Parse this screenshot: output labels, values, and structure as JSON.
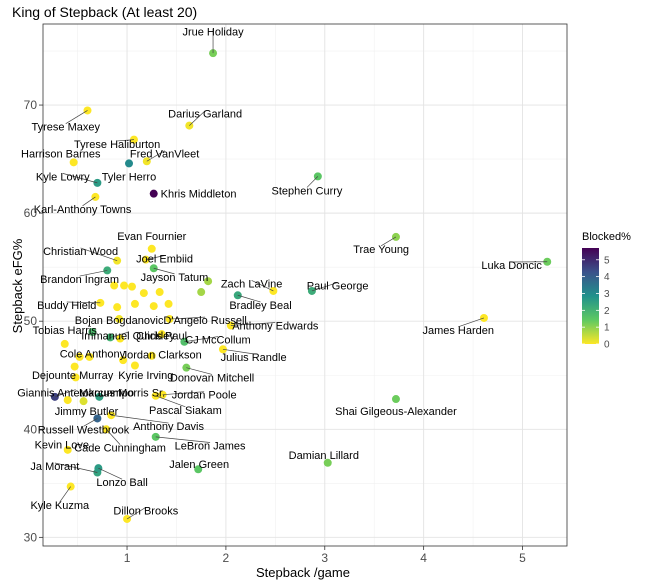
{
  "chart_data": {
    "type": "scatter",
    "title": "King of Stepback (At least 20)",
    "xlabel": "Stepback /game",
    "ylabel": "Stepback eFG%",
    "xlim": [
      0.15,
      5.45
    ],
    "ylim": [
      29.2,
      77.5
    ],
    "x_ticks": [
      1,
      2,
      3,
      4,
      5
    ],
    "y_ticks": [
      30,
      40,
      50,
      60,
      70
    ],
    "grid": true,
    "legend": {
      "title": "Blocked%",
      "position": "right",
      "ticks": [
        0,
        1,
        2,
        3,
        4,
        5
      ],
      "range": [
        0,
        5.7
      ],
      "colormap": "viridis"
    },
    "points": [
      {
        "name": "Jrue Holiday",
        "x": 1.87,
        "y": 74.8,
        "blocked": 1.2,
        "lx": 1.87,
        "ly": 76.8,
        "anchor": "middle"
      },
      {
        "name": "Tyrese Maxey",
        "x": 0.6,
        "y": 69.5,
        "blocked": 0.0,
        "lx": 0.38,
        "ly": 68.0,
        "anchor": "middle"
      },
      {
        "name": "Darius Garland",
        "x": 1.63,
        "y": 68.1,
        "blocked": 0.1,
        "lx": 1.79,
        "ly": 69.2,
        "anchor": "middle"
      },
      {
        "name": "Tyrese Haliburton",
        "x": 1.07,
        "y": 66.8,
        "blocked": 0.0,
        "lx": 0.9,
        "ly": 66.4,
        "anchor": "middle"
      },
      {
        "name": "Harrison Barnes",
        "x": 0.46,
        "y": 64.7,
        "blocked": 0.0,
        "lx": 0.33,
        "ly": 65.5,
        "anchor": "middle"
      },
      {
        "name": "Fred VanVleet",
        "x": 1.2,
        "y": 64.8,
        "blocked": 0.1,
        "lx": 1.38,
        "ly": 65.5,
        "anchor": "middle"
      },
      {
        "name": "Tyler Herro",
        "x": 1.02,
        "y": 64.6,
        "blocked": 3.0,
        "lx": 1.02,
        "ly": 63.4,
        "anchor": "middle"
      },
      {
        "name": "Kyle Lowry",
        "x": 0.7,
        "y": 62.8,
        "blocked": 2.6,
        "lx": 0.35,
        "ly": 63.4,
        "anchor": "middle"
      },
      {
        "name": "Stephen Curry",
        "x": 2.93,
        "y": 63.4,
        "blocked": 1.5,
        "lx": 2.82,
        "ly": 62.1,
        "anchor": "middle"
      },
      {
        "name": "Khris Middleton",
        "x": 1.27,
        "y": 61.8,
        "blocked": 5.7,
        "lx": 1.34,
        "ly": 61.8,
        "anchor": "start"
      },
      {
        "name": "Karl-Anthony Towns",
        "x": 0.68,
        "y": 61.5,
        "blocked": 0.0,
        "lx": 0.55,
        "ly": 60.4,
        "anchor": "middle"
      },
      {
        "name": "Trae Young",
        "x": 3.72,
        "y": 57.8,
        "blocked": 1.0,
        "lx": 3.57,
        "ly": 56.7,
        "anchor": "middle"
      },
      {
        "name": "Evan Fournier",
        "x": 1.25,
        "y": 56.7,
        "blocked": 0.0,
        "lx": 1.25,
        "ly": 57.9,
        "anchor": "middle"
      },
      {
        "name": "Joel Embiid",
        "x": 1.19,
        "y": 55.7,
        "blocked": 0.0,
        "lx": 1.38,
        "ly": 55.8,
        "anchor": "middle"
      },
      {
        "name": "Christian Wood",
        "x": 0.9,
        "y": 55.6,
        "blocked": 0.1,
        "lx": 0.53,
        "ly": 56.5,
        "anchor": "middle"
      },
      {
        "name": "Luka Doncic",
        "x": 5.25,
        "y": 55.5,
        "blocked": 1.3,
        "lx": 4.89,
        "ly": 55.2,
        "anchor": "middle"
      },
      {
        "name": "Jayson Tatum",
        "x": 1.27,
        "y": 54.9,
        "blocked": 1.5,
        "lx": 1.48,
        "ly": 54.1,
        "anchor": "middle"
      },
      {
        "name": "Brandon Ingram",
        "x": 0.8,
        "y": 54.7,
        "blocked": 2.2,
        "lx": 0.52,
        "ly": 53.9,
        "anchor": "middle"
      },
      {
        "name": "Zach LaVine",
        "x": 2.48,
        "y": 52.8,
        "blocked": 0.0,
        "lx": 2.26,
        "ly": 53.5,
        "anchor": "middle"
      },
      {
        "name": "Paul George",
        "x": 2.87,
        "y": 52.8,
        "blocked": 2.2,
        "lx": 3.13,
        "ly": 53.3,
        "anchor": "middle"
      },
      {
        "name": "Bradley Beal",
        "x": 2.12,
        "y": 52.4,
        "blocked": 2.3,
        "lx": 2.35,
        "ly": 51.5,
        "anchor": "middle"
      },
      {
        "name": "Buddy Hield",
        "x": 0.73,
        "y": 51.7,
        "blocked": 0.0,
        "lx": 0.39,
        "ly": 51.5,
        "anchor": "middle"
      },
      {
        "name": "James Harden",
        "x": 4.61,
        "y": 50.3,
        "blocked": 0.0,
        "lx": 4.35,
        "ly": 49.2,
        "anchor": "middle"
      },
      {
        "name": "Bojan Bogdanovic",
        "x": 0.92,
        "y": 50.2,
        "blocked": 0.1,
        "lx": 0.92,
        "ly": 50.1,
        "anchor": "middle"
      },
      {
        "name": "D'Angelo Russell",
        "x": 1.43,
        "y": 50.2,
        "blocked": 0.0,
        "lx": 1.79,
        "ly": 50.1,
        "anchor": "middle"
      },
      {
        "name": "Anthony Edwards",
        "x": 2.05,
        "y": 49.6,
        "blocked": 0.0,
        "lx": 2.5,
        "ly": 49.6,
        "anchor": "middle"
      },
      {
        "name": "Tobias Harris",
        "x": 0.37,
        "y": 47.9,
        "blocked": 0.0,
        "lx": 0.37,
        "ly": 49.2,
        "anchor": "middle"
      },
      {
        "name": "Immanuel Quickley",
        "x": 0.83,
        "y": 48.5,
        "blocked": 2.0,
        "lx": 1.01,
        "ly": 48.7,
        "anchor": "middle"
      },
      {
        "name": "Chris Paul",
        "x": 1.35,
        "y": 48.8,
        "blocked": 0.0,
        "lx": 1.35,
        "ly": 48.7,
        "anchor": "middle"
      },
      {
        "name": "CJ McCollum",
        "x": 1.58,
        "y": 48.1,
        "blocked": 1.7,
        "lx": 1.92,
        "ly": 48.3,
        "anchor": "middle"
      },
      {
        "name": "Cole Anthony",
        "x": 0.52,
        "y": 46.7,
        "blocked": 0.0,
        "lx": 0.65,
        "ly": 47.0,
        "anchor": "middle"
      },
      {
        "name": "Jordan Clarkson",
        "x": 1.25,
        "y": 46.8,
        "blocked": 0.0,
        "lx": 1.35,
        "ly": 46.9,
        "anchor": "middle"
      },
      {
        "name": "Julius Randle",
        "x": 1.97,
        "y": 47.4,
        "blocked": 0.0,
        "lx": 2.28,
        "ly": 46.7,
        "anchor": "middle"
      },
      {
        "name": "Dejounte Murray",
        "x": 0.47,
        "y": 45.8,
        "blocked": 0.0,
        "lx": 0.45,
        "ly": 45.0,
        "anchor": "middle"
      },
      {
        "name": "Kyrie Irving",
        "x": 1.08,
        "y": 45.9,
        "blocked": 0.0,
        "lx": 1.19,
        "ly": 45.0,
        "anchor": "middle"
      },
      {
        "name": "Donovan Mitchell",
        "x": 1.6,
        "y": 45.7,
        "blocked": 1.2,
        "lx": 1.86,
        "ly": 44.8,
        "anchor": "middle"
      },
      {
        "name": "Giannis Antetokounmpo",
        "x": 0.27,
        "y": 43.0,
        "blocked": 4.6,
        "lx": 0.48,
        "ly": 43.4,
        "anchor": "middle"
      },
      {
        "name": "Marcus Morris Sr.",
        "x": 0.72,
        "y": 43.0,
        "blocked": 2.5,
        "lx": 0.95,
        "ly": 43.4,
        "anchor": "middle"
      },
      {
        "name": "Jordan Poole",
        "x": 1.36,
        "y": 43.2,
        "blocked": 0.0,
        "lx": 1.78,
        "ly": 43.2,
        "anchor": "middle"
      },
      {
        "name": "Shai Gilgeous-Alexander",
        "x": 3.72,
        "y": 42.8,
        "blocked": 1.3,
        "lx": 3.72,
        "ly": 41.7,
        "anchor": "middle"
      },
      {
        "name": "Jimmy Butler",
        "x": 0.56,
        "y": 42.6,
        "blocked": 0.3,
        "lx": 0.59,
        "ly": 41.7,
        "anchor": "middle"
      },
      {
        "name": "Pascal Siakam",
        "x": 1.29,
        "y": 43.1,
        "blocked": 0.0,
        "lx": 1.59,
        "ly": 41.8,
        "anchor": "middle"
      },
      {
        "name": "Anthony Davis",
        "x": 0.84,
        "y": 41.3,
        "blocked": 0.0,
        "lx": 1.42,
        "ly": 40.3,
        "anchor": "middle"
      },
      {
        "name": "Russell Westbrook",
        "x": 0.7,
        "y": 41.0,
        "blocked": 3.9,
        "lx": 0.56,
        "ly": 40.0,
        "anchor": "middle"
      },
      {
        "name": "Cade Cunningham",
        "x": 0.79,
        "y": 40.0,
        "blocked": 0.0,
        "lx": 0.93,
        "ly": 38.3,
        "anchor": "middle"
      },
      {
        "name": "LeBron James",
        "x": 1.29,
        "y": 39.3,
        "blocked": 1.5,
        "lx": 1.84,
        "ly": 38.5,
        "anchor": "middle"
      },
      {
        "name": "Kevin Love",
        "x": 0.4,
        "y": 38.1,
        "blocked": 0.0,
        "lx": 0.34,
        "ly": 38.6,
        "anchor": "middle"
      },
      {
        "name": "Damian Lillard",
        "x": 3.03,
        "y": 36.9,
        "blocked": 1.2,
        "lx": 2.99,
        "ly": 37.6,
        "anchor": "middle"
      },
      {
        "name": "Jalen Green",
        "x": 1.72,
        "y": 36.3,
        "blocked": 1.5,
        "lx": 1.73,
        "ly": 36.8,
        "anchor": "middle"
      },
      {
        "name": "Ja Morant",
        "x": 0.7,
        "y": 36.0,
        "blocked": 2.4,
        "lx": 0.27,
        "ly": 36.6,
        "anchor": "middle"
      },
      {
        "name": "Lonzo Ball",
        "x": 0.71,
        "y": 36.4,
        "blocked": 2.6,
        "lx": 0.95,
        "ly": 35.1,
        "anchor": "middle"
      },
      {
        "name": "Kyle Kuzma",
        "x": 0.43,
        "y": 34.7,
        "blocked": 0.0,
        "lx": 0.32,
        "ly": 33.0,
        "anchor": "middle"
      },
      {
        "name": "Dillon Brooks",
        "x": 1.0,
        "y": 31.7,
        "blocked": 0.0,
        "lx": 1.19,
        "ly": 32.5,
        "anchor": "middle"
      }
    ],
    "extra_points": [
      {
        "x": 0.87,
        "y": 53.3,
        "blocked": 0.0
      },
      {
        "x": 0.97,
        "y": 53.3,
        "blocked": 0.0
      },
      {
        "x": 1.05,
        "y": 53.2,
        "blocked": 0.0
      },
      {
        "x": 1.17,
        "y": 52.6,
        "blocked": 0.0
      },
      {
        "x": 1.33,
        "y": 52.7,
        "blocked": 0.0
      },
      {
        "x": 1.42,
        "y": 51.6,
        "blocked": 0.0
      },
      {
        "x": 1.27,
        "y": 51.4,
        "blocked": 0.0
      },
      {
        "x": 0.9,
        "y": 51.3,
        "blocked": 0.0
      },
      {
        "x": 1.08,
        "y": 51.6,
        "blocked": 0.0
      },
      {
        "x": 1.75,
        "y": 52.7,
        "blocked": 0.8
      },
      {
        "x": 1.82,
        "y": 53.7,
        "blocked": 0.8
      },
      {
        "x": 0.65,
        "y": 49.0,
        "blocked": 1.8
      },
      {
        "x": 0.93,
        "y": 48.4,
        "blocked": 0.0
      },
      {
        "x": 0.96,
        "y": 46.4,
        "blocked": 0.0
      },
      {
        "x": 0.62,
        "y": 46.7,
        "blocked": 0.0
      },
      {
        "x": 0.48,
        "y": 44.8,
        "blocked": 0.0
      },
      {
        "x": 0.4,
        "y": 42.7,
        "blocked": 0.0
      }
    ]
  }
}
